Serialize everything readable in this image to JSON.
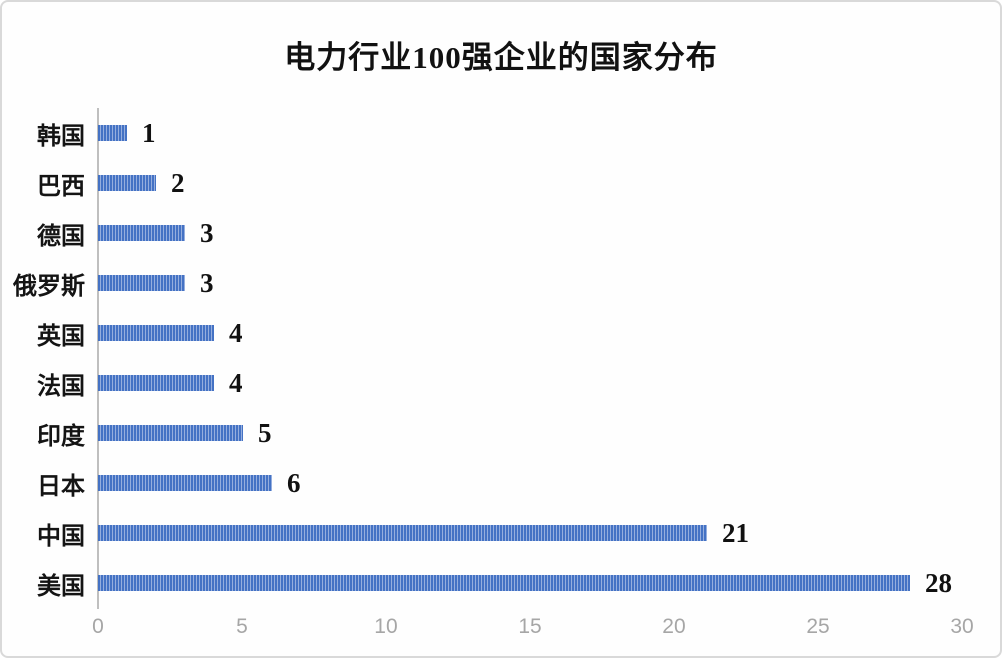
{
  "title": "电力行业100强企业的国家分布",
  "chart_data": {
    "type": "bar",
    "orientation": "horizontal",
    "title": "电力行业100强企业的国家分布",
    "categories": [
      "韩国",
      "巴西",
      "德国",
      "俄罗斯",
      "英国",
      "法国",
      "印度",
      "日本",
      "中国",
      "美国"
    ],
    "values": [
      1,
      2,
      3,
      3,
      4,
      4,
      5,
      6,
      21,
      28
    ],
    "xlabel": "",
    "ylabel": "",
    "xlim": [
      0,
      30
    ],
    "x_ticks": [
      0,
      5,
      10,
      15,
      20,
      25,
      30
    ],
    "grid": false,
    "legend": "none",
    "data_labels": true
  },
  "colors": {
    "bar_fill": "#4472c4",
    "bar_stripe": "#95aede",
    "axis_line": "#bfbfbf",
    "tick_label": "#a6a6a6",
    "label_text": "#111111",
    "border": "#d9d9d9",
    "background": "#fefefe"
  }
}
